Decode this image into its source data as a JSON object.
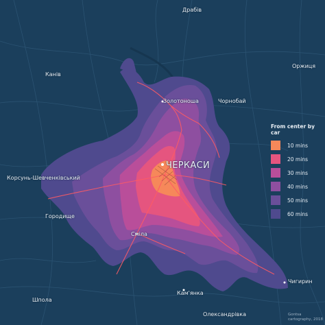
{
  "colors": {
    "background": "#1b3f5c",
    "road": "#2e5573",
    "zone_60": "#4f4a8e",
    "zone_50": "#6a4f9a",
    "zone_40": "#8e4fa0",
    "zone_30": "#b94e9a",
    "zone_20": "#e5557f",
    "zone_10": "#f6885a"
  },
  "places": [
    {
      "id": "drabiv",
      "name": "Драбів"
    },
    {
      "id": "orzhytsia",
      "name": "Оржиця"
    },
    {
      "id": "kaniv",
      "name": "Канів"
    },
    {
      "id": "zolotonosha",
      "name": "Золотоноша"
    },
    {
      "id": "chornobai",
      "name": "Чорнобай"
    },
    {
      "id": "cherkasy",
      "name": "ЧЕРКАСИ"
    },
    {
      "id": "korsun",
      "name": "Корсунь-Шевченківський"
    },
    {
      "id": "horodyshche",
      "name": "Городище"
    },
    {
      "id": "smila",
      "name": "Сміла"
    },
    {
      "id": "chyhyryn",
      "name": "Чигирин"
    },
    {
      "id": "kamianka",
      "name": "Кам'янка"
    },
    {
      "id": "shpola",
      "name": "Шпола"
    },
    {
      "id": "oleksandrivka",
      "name": "Олександрівка"
    }
  ],
  "legend": {
    "title": "From center by car",
    "items": [
      {
        "label": "10 mins",
        "color": "#f6885a"
      },
      {
        "label": "20 mins",
        "color": "#e5557f"
      },
      {
        "label": "30 mins",
        "color": "#b94e9a"
      },
      {
        "label": "40 mins",
        "color": "#8e4fa0"
      },
      {
        "label": "50 mins",
        "color": "#6a4f9a"
      },
      {
        "label": "60 mins",
        "color": "#4f4a8e"
      }
    ]
  },
  "credit": {
    "line1": "Gontsa",
    "line2": "cartography, 2018"
  }
}
